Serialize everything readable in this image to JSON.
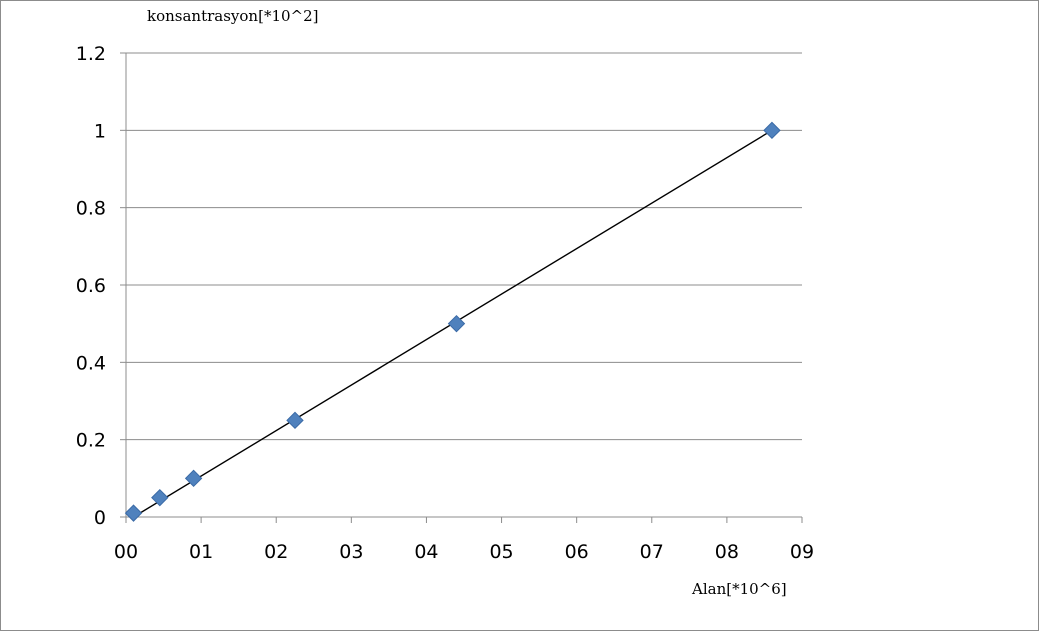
{
  "chart_data": {
    "type": "scatter",
    "title": "",
    "ylabel": "konsantrasyon[*10^2]",
    "xlabel": "Alan[*10^6]",
    "xlim": [
      0,
      9
    ],
    "ylim": [
      0,
      1.2
    ],
    "x_ticks": [
      "00",
      "01",
      "02",
      "03",
      "04",
      "05",
      "06",
      "07",
      "08",
      "09"
    ],
    "y_ticks": [
      "0",
      "0.2",
      "0.4",
      "0.6",
      "0.8",
      "1",
      "1.2"
    ],
    "grid": "horizontal",
    "series": [
      {
        "marker": "diamond",
        "color": "#4f81bd",
        "points": [
          {
            "x": 0.1,
            "y": 0.01
          },
          {
            "x": 0.45,
            "y": 0.05
          },
          {
            "x": 0.9,
            "y": 0.1
          },
          {
            "x": 2.25,
            "y": 0.25
          },
          {
            "x": 4.4,
            "y": 0.5
          },
          {
            "x": 8.6,
            "y": 1.0
          }
        ]
      }
    ],
    "trendline": {
      "type": "linear",
      "color": "#000000",
      "x_range": [
        0.1,
        8.6
      ],
      "y_range": [
        0.0,
        1.0
      ]
    }
  }
}
